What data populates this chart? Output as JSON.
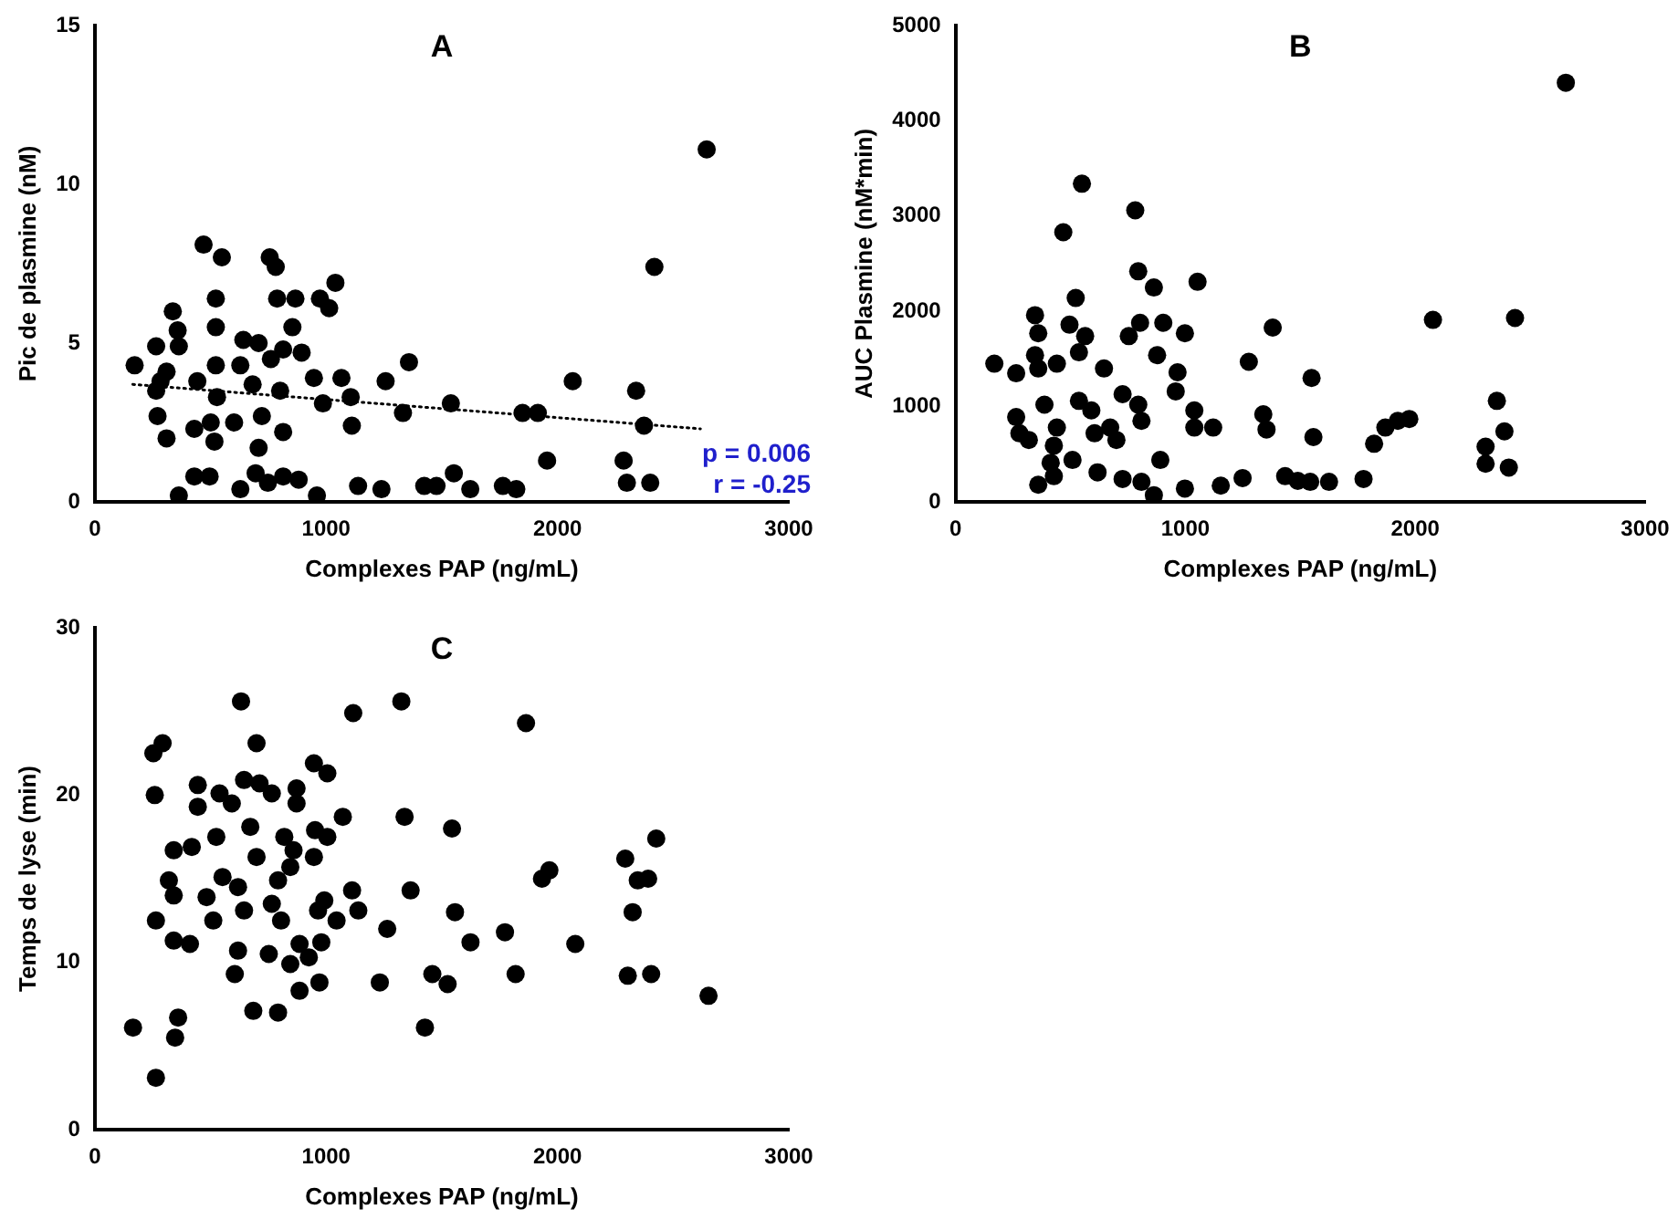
{
  "chart_data": [
    {
      "type": "scatter",
      "title": "A",
      "xlabel": "Complexes PAP (ng/mL)",
      "ylabel": "Pic de plasmine (nM)",
      "xlim": [
        0,
        3000
      ],
      "xticks": [
        0,
        1000,
        2000,
        3000
      ],
      "ylim": [
        0,
        15
      ],
      "yticks": [
        0,
        5,
        10,
        15
      ],
      "grid": false,
      "marker": "circle",
      "annotations": [
        "p = 0.006",
        "r = -0.25"
      ],
      "series": [
        {
          "type": "scatter",
          "color": "#000000",
          "x": [
            172,
            265,
            265,
            271,
            310,
            310,
            337,
            358,
            363,
            284,
            443,
            430,
            470,
            549,
            523,
            523,
            523,
            517,
            501,
            528,
            602,
            629,
            642,
            708,
            682,
            722,
            708,
            756,
            782,
            788,
            867,
            854,
            814,
            761,
            801,
            814,
            894,
            973,
            1013,
            1040,
            947,
            986,
            1066,
            1106,
            1111,
            1257,
            1358,
            1332,
            1539,
            1849,
            1915,
            1955,
            2066,
            2340,
            2374,
            2419,
            2645,
            2286,
            2300,
            2401,
            363,
            430,
            496,
            629,
            695,
            748,
            814,
            881,
            960,
            1138,
            1239,
            1424,
            1477,
            1552,
            1623,
            1764,
            1822
          ],
          "values": [
            4.3,
            4.9,
            3.5,
            2.7,
            2.0,
            4.1,
            6.0,
            5.4,
            4.9,
            3.8,
            3.8,
            2.3,
            8.1,
            7.7,
            6.4,
            5.5,
            4.3,
            1.9,
            2.5,
            3.3,
            2.5,
            4.3,
            5.1,
            5.0,
            3.7,
            2.7,
            1.7,
            7.7,
            7.4,
            6.4,
            6.4,
            5.5,
            4.8,
            4.5,
            3.5,
            2.2,
            4.7,
            6.4,
            6.1,
            6.9,
            3.9,
            3.1,
            3.9,
            3.3,
            2.4,
            3.8,
            4.4,
            2.8,
            3.1,
            2.8,
            2.8,
            1.3,
            3.8,
            3.5,
            2.4,
            7.4,
            11.1,
            1.3,
            0.6,
            0.6,
            0.2,
            0.8,
            0.8,
            0.4,
            0.9,
            0.6,
            0.8,
            0.7,
            0.2,
            0.5,
            0.4,
            0.5,
            0.5,
            0.9,
            0.4,
            0.5,
            0.4
          ]
        },
        {
          "type": "line",
          "color": "#000000",
          "marker": "none",
          "line_style": "dotted",
          "x": [
            164,
            2618
          ],
          "values": [
            3.7,
            2.3
          ]
        }
      ]
    },
    {
      "type": "scatter",
      "title": "B",
      "xlabel": "Complexes PAP (ng/mL)",
      "ylabel": "AUC Plasmine (nM*min)",
      "xlim": [
        0,
        3000
      ],
      "xticks": [
        0,
        1000,
        2000,
        3000
      ],
      "ylim": [
        0,
        5000
      ],
      "yticks": [
        0,
        1000,
        2000,
        3000,
        4000,
        5000
      ],
      "grid": false,
      "marker": "circle",
      "series": [
        {
          "type": "scatter",
          "color": "#000000",
          "x": [
            169,
            264,
            264,
            278,
            319,
            346,
            360,
            346,
            360,
            387,
            360,
            428,
            414,
            441,
            469,
            523,
            496,
            537,
            564,
            550,
            441,
            428,
            509,
            537,
            591,
            605,
            618,
            646,
            673,
            727,
            700,
            727,
            754,
            782,
            795,
            803,
            795,
            809,
            809,
            863,
            877,
            904,
            891,
            863,
            966,
            998,
            958,
            998,
            1039,
            1053,
            1039,
            1121,
            1154,
            1249,
            1276,
            1339,
            1353,
            1380,
            1434,
            1489,
            1543,
            1549,
            1557,
            1625,
            1775,
            1821,
            1870,
            1924,
            1974,
            2077,
            2306,
            2306,
            2355,
            2388,
            2407,
            2434,
            2655
          ],
          "values": [
            1450,
            1350,
            890,
            720,
            650,
            1960,
            1770,
            1540,
            1400,
            1020,
            180,
            270,
            410,
            1450,
            2830,
            2140,
            1860,
            1570,
            1740,
            3340,
            780,
            590,
            440,
            1060,
            960,
            720,
            310,
            1400,
            780,
            1130,
            650,
            240,
            1740,
            3060,
            2420,
            1880,
            1020,
            850,
            210,
            2250,
            1540,
            1880,
            440,
            70,
            1360,
            1770,
            1160,
            140,
            960,
            2310,
            780,
            780,
            170,
            250,
            1470,
            920,
            760,
            1830,
            270,
            220,
            210,
            1300,
            680,
            210,
            240,
            610,
            780,
            850,
            870,
            1910,
            580,
            400,
            1060,
            740,
            360,
            1930,
            4400
          ]
        }
      ]
    },
    {
      "type": "scatter",
      "title": "C",
      "xlabel": "Complexes PAP (ng/mL)",
      "ylabel": "Temps de lyse (min)",
      "xlim": [
        0,
        3000
      ],
      "xticks": [
        0,
        1000,
        2000,
        3000
      ],
      "ylim": [
        0,
        30
      ],
      "yticks": [
        0,
        10,
        20,
        30
      ],
      "grid": false,
      "marker": "circle",
      "series": [
        {
          "type": "scatter",
          "color": "#000000",
          "x": [
            165,
            264,
            264,
            259,
            253,
            293,
            320,
            341,
            341,
            347,
            360,
            341,
            419,
            411,
            445,
            445,
            483,
            512,
            525,
            539,
            552,
            592,
            619,
            619,
            605,
            632,
            645,
            672,
            645,
            699,
            712,
            765,
            699,
            685,
            792,
            752,
            765,
            805,
            792,
            819,
            845,
            872,
            872,
            859,
            845,
            885,
            885,
            925,
            952,
            947,
            947,
            965,
            979,
            971,
            1005,
            1005,
            992,
            1045,
            1072,
            1117,
            1112,
            1139,
            1232,
            1264,
            1325,
            1339,
            1365,
            1427,
            1459,
            1525,
            1544,
            1557,
            1624,
            1773,
            1819,
            1864,
            1933,
            1965,
            2077,
            2293,
            2325,
            2347,
            2392,
            2304,
            2405,
            2427,
            2653
          ],
          "values": [
            6.1,
            3.1,
            12.5,
            20.0,
            22.5,
            23.1,
            14.9,
            14.0,
            11.3,
            5.5,
            6.7,
            16.7,
            16.9,
            11.1,
            20.6,
            19.3,
            13.9,
            12.5,
            17.5,
            20.1,
            15.1,
            19.5,
            14.5,
            10.7,
            9.3,
            25.6,
            20.9,
            18.1,
            13.1,
            23.1,
            20.7,
            20.1,
            16.3,
            7.1,
            7.0,
            10.5,
            13.5,
            12.5,
            14.9,
            17.5,
            15.7,
            20.4,
            19.5,
            16.7,
            9.9,
            8.3,
            11.1,
            10.3,
            17.9,
            21.9,
            16.3,
            13.1,
            11.2,
            8.8,
            21.3,
            17.5,
            13.7,
            12.5,
            18.7,
            24.9,
            14.3,
            13.1,
            8.8,
            12.0,
            25.6,
            18.7,
            14.3,
            6.1,
            9.3,
            8.7,
            18.0,
            13.0,
            11.2,
            11.8,
            9.3,
            24.3,
            15.0,
            15.5,
            11.1,
            16.2,
            13.0,
            14.9,
            15.0,
            9.2,
            9.3,
            17.4,
            8.0
          ]
        }
      ]
    }
  ]
}
